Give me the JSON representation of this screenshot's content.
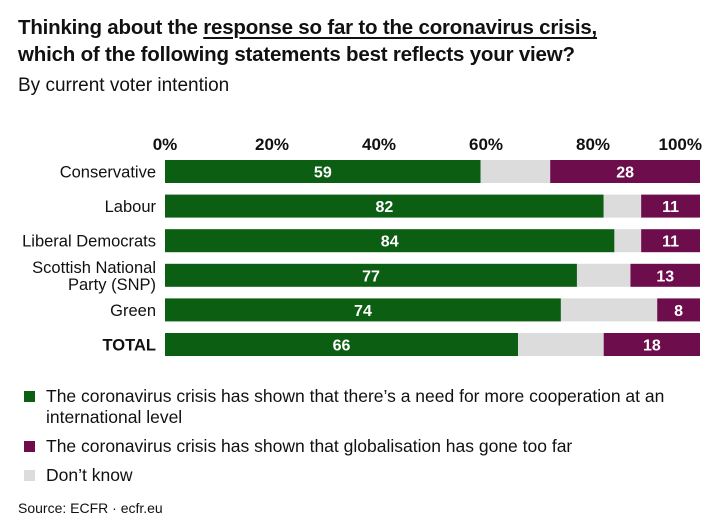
{
  "title": {
    "part1": "Thinking about the ",
    "underlined": "response so far to the coronavirus crisis,",
    "line2": "which of the following statements best reflects your view?"
  },
  "subtitle": "By current voter intention",
  "colors": {
    "cooperation": "#0b5e12",
    "globalisation": "#6e0d4c",
    "dont_know": "#dcdcdc",
    "text_on_bar": "#ffffff"
  },
  "chart_data": {
    "type": "bar",
    "orientation": "horizontal",
    "stacked": true,
    "x_ticks": [
      "0%",
      "20%",
      "40%",
      "60%",
      "80%",
      "100%"
    ],
    "xlim": [
      0,
      100
    ],
    "categories": [
      [
        "Conservative"
      ],
      [
        "Labour"
      ],
      [
        "Liberal Democrats"
      ],
      [
        "Scottish National",
        "Party (SNP)"
      ],
      [
        "Green"
      ],
      [
        "TOTAL"
      ]
    ],
    "bold_categories": [
      false,
      false,
      false,
      false,
      false,
      true
    ],
    "series": [
      {
        "name": "The coronavirus crisis has shown that there’s a need for more cooperation at an international level",
        "color": "#0b5e12",
        "values": [
          59,
          82,
          84,
          77,
          74,
          66
        ],
        "labels": [
          "59",
          "82",
          "84",
          "77",
          "74",
          "66"
        ]
      },
      {
        "name": "Don’t know",
        "color": "#dcdcdc",
        "values": [
          13,
          7,
          5,
          10,
          18,
          16
        ],
        "labels": [
          "",
          "",
          "",
          "",
          "",
          ""
        ]
      },
      {
        "name": "The coronavirus crisis has shown that globalisation has gone too far",
        "color": "#6e0d4c",
        "values": [
          28,
          11,
          11,
          13,
          8,
          18
        ],
        "labels": [
          "28",
          "11",
          "11",
          "13",
          "8",
          "18"
        ]
      }
    ]
  },
  "legend": [
    {
      "label": "The coronavirus crisis has shown that there’s a need for more cooperation at an international level",
      "color": "#0b5e12"
    },
    {
      "label": "The coronavirus crisis has shown that globalisation has gone too far",
      "color": "#6e0d4c"
    },
    {
      "label": "Don’t know",
      "color": "#dcdcdc"
    }
  ],
  "source": "Source:  ECFR · ecfr.eu"
}
